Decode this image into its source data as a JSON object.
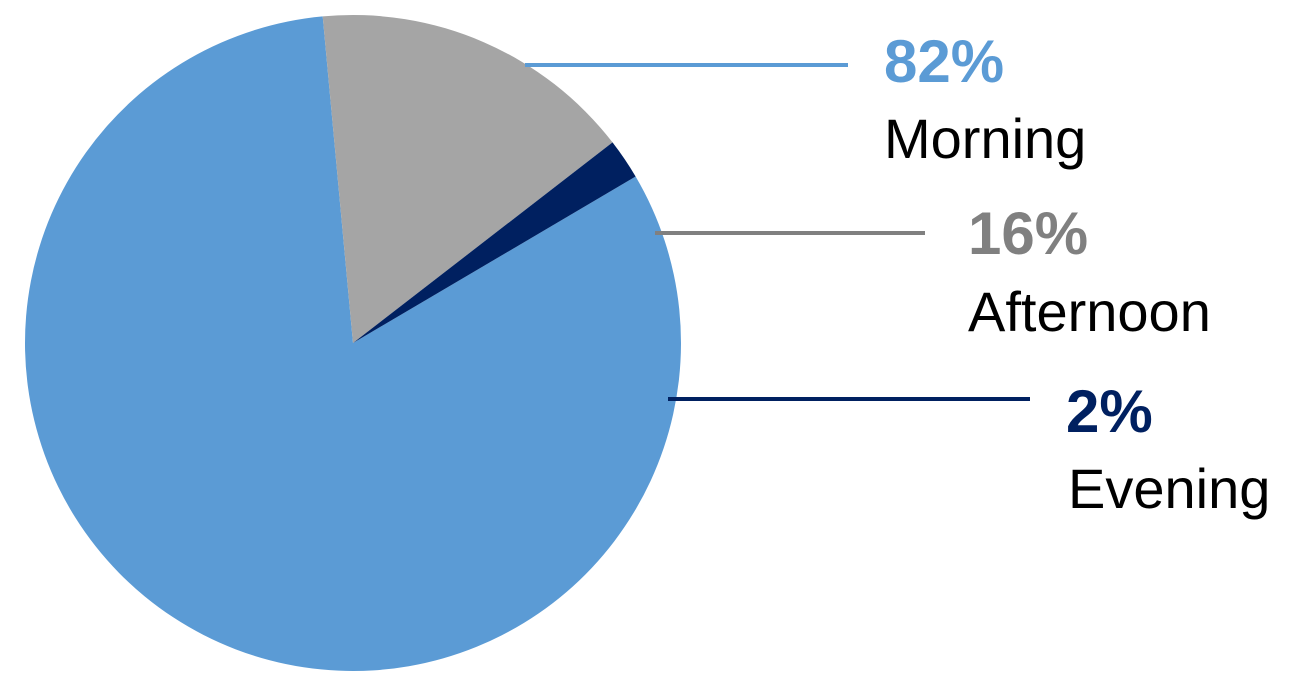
{
  "chart_data": {
    "type": "pie",
    "start_angle_deg": -30.5,
    "direction": "clockwise",
    "slices": [
      {
        "label": "Morning",
        "value": 82,
        "value_label": "82%",
        "color": "#5B9BD5",
        "label_color": "#5B9BD5"
      },
      {
        "label": "Afternoon",
        "value": 16,
        "value_label": "16%",
        "color": "#A5A5A5",
        "label_color": "#808080"
      },
      {
        "label": "Evening",
        "value": 2,
        "value_label": "2%",
        "color": "#002060",
        "label_color": "#002060"
      }
    ],
    "title": "",
    "legend": "none"
  }
}
